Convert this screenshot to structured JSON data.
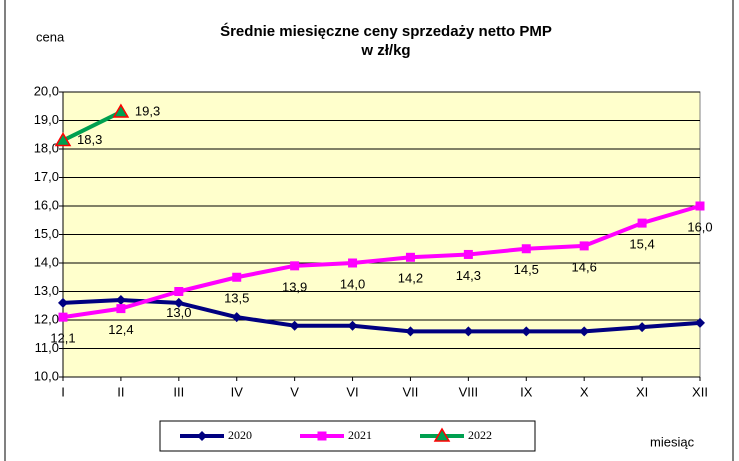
{
  "chart_data": {
    "type": "line",
    "title": "Średnie miesięczne ceny sprzedaży netto PMP",
    "subtitle": "w zł/kg",
    "y_label": "cena",
    "x_label": "miesiąc",
    "categories": [
      "I",
      "II",
      "III",
      "IV",
      "V",
      "VI",
      "VII",
      "VIII",
      "IX",
      "X",
      "XI",
      "XII"
    ],
    "series": [
      {
        "name": "2020",
        "color": "#000080",
        "marker": "diamond",
        "values": [
          12.6,
          12.7,
          12.6,
          12.1,
          11.8,
          11.8,
          11.6,
          11.6,
          11.6,
          11.6,
          11.75,
          11.9
        ]
      },
      {
        "name": "2021",
        "color": "#ff00ff",
        "marker": "square",
        "label_position": "below",
        "values": [
          12.1,
          12.4,
          13.0,
          13.5,
          13.9,
          14.0,
          14.2,
          14.3,
          14.5,
          14.6,
          15.4,
          16.0
        ],
        "value_labels": [
          "12,1",
          "12,4",
          "13,0",
          "13,5",
          "13,9",
          "14,0",
          "14,2",
          "14,3",
          "14,5",
          "14,6",
          "15,4",
          "16,0"
        ]
      },
      {
        "name": "2022",
        "color": "#00a050",
        "marker": "triangle",
        "marker_color": "#ff0000",
        "label_position": "right",
        "values": [
          18.3,
          19.3,
          null,
          null,
          null,
          null,
          null,
          null,
          null,
          null,
          null,
          null
        ],
        "value_labels": [
          "18,3",
          "19,3",
          null,
          null,
          null,
          null,
          null,
          null,
          null,
          null,
          null,
          null
        ]
      }
    ],
    "ylim": [
      10,
      20
    ],
    "yticks": [
      {
        "value": 10,
        "label": "10,0"
      },
      {
        "value": 11,
        "label": "11,0"
      },
      {
        "value": 12,
        "label": "12,0"
      },
      {
        "value": 13,
        "label": "13,0"
      },
      {
        "value": 14,
        "label": "14,0"
      },
      {
        "value": 15,
        "label": "15,0"
      },
      {
        "value": 16,
        "label": "16,0"
      },
      {
        "value": 17,
        "label": "17,0"
      },
      {
        "value": 18,
        "label": "18,0"
      },
      {
        "value": 19,
        "label": "19,0"
      },
      {
        "value": 20,
        "label": "20,0"
      }
    ],
    "grid": true,
    "plot_background": "#ffffcc",
    "legend": "bottom"
  }
}
